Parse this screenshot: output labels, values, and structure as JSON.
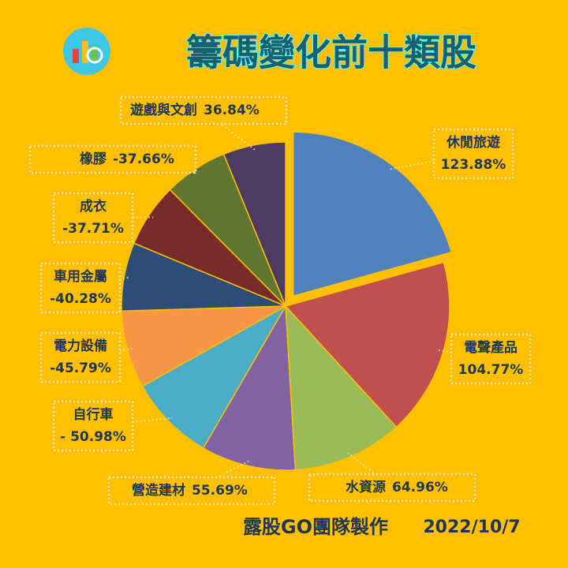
{
  "chart_data": {
    "type": "pie",
    "title": "籌碼變化前十類股",
    "categories": [
      "休閒旅遊",
      "電聲產品",
      "水資源",
      "營造建材",
      "自行車",
      "電力設備",
      "車用金屬",
      "成衣",
      "橡膠",
      "遊戲與文創"
    ],
    "values": [
      123.88,
      104.77,
      64.96,
      55.69,
      -50.98,
      -45.79,
      -40.28,
      -37.71,
      -37.66,
      36.84
    ],
    "value_labels": [
      "123.88%",
      "104.77%",
      "64.96%",
      "55.69%",
      "- 50.98%",
      "-45.79%",
      "-40.28%",
      "-37.71%",
      "-37.66%",
      "36.84%"
    ],
    "colors": [
      "#4f81bd",
      "#c0504d",
      "#9bbb59",
      "#8064a2",
      "#4bacc6",
      "#f79646",
      "#2c4d75",
      "#772c2a",
      "#5f7530",
      "#4d3b62"
    ],
    "footer": "露股GO團隊製作",
    "date": "2022/10/7"
  }
}
